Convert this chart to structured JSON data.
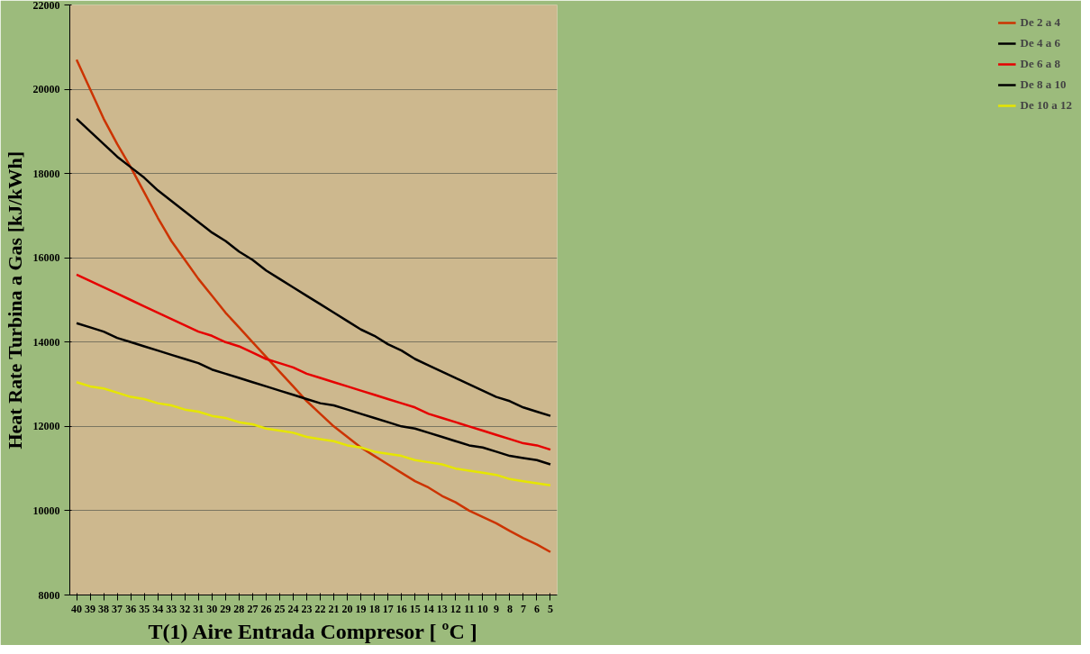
{
  "chart_data": {
    "type": "line",
    "xlabel": "T(1) Aire Entrada Compresor [ ºC ]",
    "ylabel": "Heat Rate Turbina a Gas [kJ/kWh]",
    "categories": [
      "40",
      "39",
      "38",
      "37",
      "36",
      "35",
      "34",
      "33",
      "32",
      "31",
      "30",
      "29",
      "28",
      "27",
      "26",
      "25",
      "24",
      "23",
      "22",
      "21",
      "20",
      "19",
      "18",
      "17",
      "16",
      "15",
      "14",
      "13",
      "12",
      "11",
      "10",
      "9",
      "8",
      "7",
      "6",
      "5"
    ],
    "ylim": [
      8000,
      22000
    ],
    "yticks": [
      8000,
      10000,
      12000,
      14000,
      16000,
      18000,
      20000,
      22000
    ],
    "grid": "y",
    "legend": "right",
    "marker": "none",
    "line_style": "solid",
    "series": [
      {
        "name": "De 2 a 4",
        "color": "#cc3300",
        "values": [
          20700,
          20000,
          19300,
          18700,
          18150,
          17550,
          16950,
          16400,
          15950,
          15500,
          15100,
          14700,
          14350,
          14000,
          13650,
          13300,
          12950,
          12600,
          12300,
          12000,
          11750,
          11500,
          11300,
          11100,
          10900,
          10700,
          10550,
          10350,
          10200,
          10000,
          9850,
          9700,
          9520,
          9350,
          9200,
          9020
        ]
      },
      {
        "name": "De 4 a 6",
        "color": "#000000",
        "values": [
          19300,
          19000,
          18700,
          18400,
          18150,
          17900,
          17600,
          17350,
          17100,
          16850,
          16600,
          16400,
          16150,
          15950,
          15700,
          15500,
          15300,
          15100,
          14900,
          14700,
          14500,
          14300,
          14150,
          13950,
          13800,
          13600,
          13450,
          13300,
          13150,
          13000,
          12850,
          12700,
          12600,
          12450,
          12350,
          12250
        ]
      },
      {
        "name": "De 6 a 8",
        "color": "#e60000",
        "values": [
          15600,
          15450,
          15300,
          15150,
          15000,
          14850,
          14700,
          14550,
          14400,
          14250,
          14150,
          14000,
          13900,
          13750,
          13600,
          13500,
          13400,
          13250,
          13150,
          13050,
          12950,
          12850,
          12750,
          12650,
          12550,
          12450,
          12300,
          12200,
          12100,
          12000,
          11900,
          11800,
          11700,
          11600,
          11550,
          11450
        ]
      },
      {
        "name": "De 8 a 10",
        "color": "#000000",
        "values": [
          14450,
          14350,
          14250,
          14100,
          14000,
          13900,
          13800,
          13700,
          13600,
          13500,
          13350,
          13250,
          13150,
          13050,
          12950,
          12850,
          12750,
          12650,
          12550,
          12500,
          12400,
          12300,
          12200,
          12100,
          12000,
          11950,
          11850,
          11750,
          11650,
          11550,
          11500,
          11400,
          11300,
          11250,
          11200,
          11100
        ]
      },
      {
        "name": "De 10 a 12",
        "color": "#e6e600",
        "values": [
          13050,
          12950,
          12900,
          12800,
          12700,
          12650,
          12550,
          12500,
          12400,
          12350,
          12250,
          12200,
          12100,
          12050,
          11950,
          11900,
          11850,
          11750,
          11700,
          11650,
          11550,
          11500,
          11400,
          11350,
          11300,
          11200,
          11150,
          11100,
          11000,
          10950,
          10900,
          10850,
          10750,
          10700,
          10650,
          10600
        ]
      }
    ]
  }
}
